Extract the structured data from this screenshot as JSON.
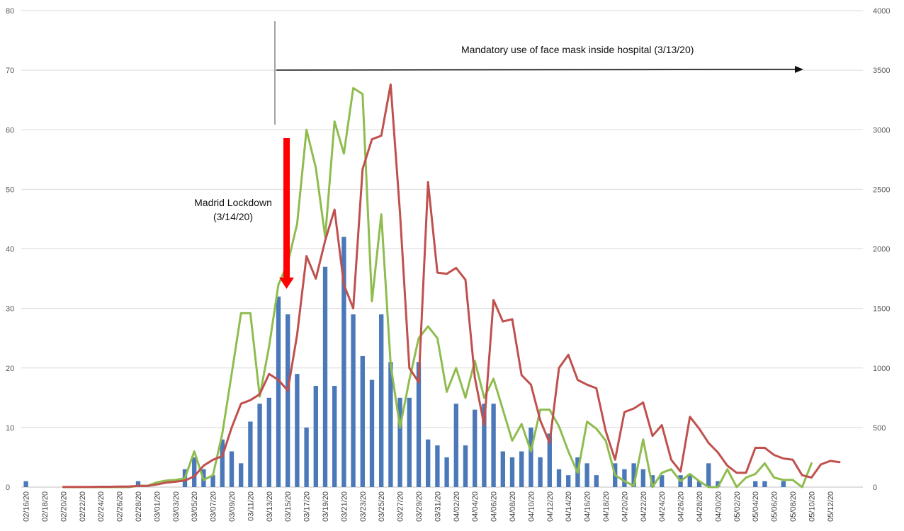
{
  "chart_data": {
    "type": "bar",
    "title": "",
    "xlabel": "",
    "ylabel": "",
    "y2label": "",
    "ylim": [
      0,
      80
    ],
    "y_ticks": [
      0,
      10,
      20,
      30,
      40,
      50,
      60,
      70,
      80
    ],
    "y2lim": [
      0,
      4000
    ],
    "y2_ticks": [
      0,
      500,
      1000,
      1500,
      2000,
      2500,
      3000,
      3500,
      4000
    ],
    "grid": true,
    "legend": "none",
    "colors": {
      "bars": "#4a78b8",
      "red_line": "#c0504d",
      "green_line": "#8fbc4f",
      "arrow": "#ff0000"
    },
    "x_tick_labels": [
      "02/16/20",
      "02/18/20",
      "02/20/20",
      "02/22/20",
      "02/24/20",
      "02/26/20",
      "02/28/20",
      "03/01/20",
      "03/03/20",
      "03/05/20",
      "03/07/20",
      "03/09/20",
      "03/11/20",
      "03/13/20",
      "03/15/20",
      "03/17/20",
      "03/19/20",
      "03/21/20",
      "03/23/20",
      "03/25/20",
      "03/27/20",
      "03/29/20",
      "03/31/20",
      "04/02/20",
      "04/04/20",
      "04/06/20",
      "04/08/20",
      "04/10/20",
      "04/12/20",
      "04/14/20",
      "04/16/20",
      "04/18/20",
      "04/20/20",
      "04/22/20",
      "04/24/20",
      "04/26/20",
      "04/28/20",
      "04/30/20",
      "05/02/20",
      "05/04/20",
      "05/06/20",
      "05/08/20",
      "05/10/20",
      "05/12/20"
    ],
    "series": [
      {
        "kind": "bar",
        "axis": "left",
        "values": [
          1,
          0,
          0,
          0,
          0,
          0,
          0,
          0,
          0,
          0,
          0,
          0,
          1,
          0,
          0,
          0,
          0,
          3,
          5,
          3,
          2,
          8,
          6,
          4,
          11,
          14,
          15,
          32,
          29,
          19,
          10,
          17,
          37,
          17,
          42,
          29,
          22,
          18,
          29,
          21,
          15,
          15,
          21,
          8,
          7,
          5,
          14,
          7,
          13,
          14,
          14,
          6,
          5,
          6,
          10,
          5,
          9,
          3,
          2,
          5,
          4,
          2,
          0,
          4,
          3,
          4,
          3,
          2,
          2,
          0,
          2,
          2,
          1,
          4,
          1,
          0,
          0,
          0,
          1,
          1,
          0,
          1,
          0,
          0,
          0,
          0,
          0,
          0,
          0,
          0
        ]
      },
      {
        "kind": "line",
        "axis": "right",
        "values": [
          null,
          null,
          null,
          null,
          2,
          2,
          2,
          2,
          3,
          3,
          4,
          5,
          10,
          10,
          22,
          38,
          45,
          55,
          90,
          180,
          230,
          260,
          500,
          700,
          730,
          780,
          950,
          900,
          810,
          1280,
          1940,
          1750,
          2070,
          2330,
          1700,
          1500,
          2670,
          2920,
          2950,
          3380,
          2300,
          1000,
          880,
          2560,
          1800,
          1790,
          1840,
          1740,
          920,
          520,
          1570,
          1390,
          1410,
          940,
          860,
          560,
          370,
          1000,
          1110,
          900,
          860,
          830,
          470,
          230,
          630,
          660,
          710,
          430,
          520,
          230,
          130,
          590,
          490,
          370,
          290,
          180,
          120,
          120,
          330,
          330,
          270,
          240,
          230,
          100,
          80,
          190,
          220,
          210
        ]
      },
      {
        "kind": "line",
        "axis": "right",
        "values": [
          null,
          null,
          null,
          null,
          0,
          0,
          0,
          0,
          0,
          0,
          0,
          0,
          10,
          10,
          40,
          55,
          60,
          75,
          300,
          60,
          100,
          450,
          950,
          1460,
          1460,
          760,
          1180,
          1700,
          1880,
          2210,
          3000,
          2680,
          2100,
          3070,
          2800,
          3350,
          3300,
          1560,
          2290,
          1030,
          500,
          900,
          1250,
          1350,
          1250,
          800,
          1000,
          750,
          1060,
          750,
          910,
          650,
          390,
          530,
          300,
          650,
          650,
          510,
          300,
          120,
          550,
          490,
          390,
          100,
          50,
          10,
          400,
          0,
          120,
          150,
          50,
          110,
          50,
          0,
          0,
          150,
          0,
          80,
          110,
          200,
          80,
          60,
          60,
          0,
          200
        ]
      }
    ],
    "annotations": [
      {
        "text": "Mandatory use of face mask inside hospital (3/13/20)"
      },
      {
        "text": "Madrid Lockdown",
        "text2": "(3/14/20)"
      }
    ]
  }
}
